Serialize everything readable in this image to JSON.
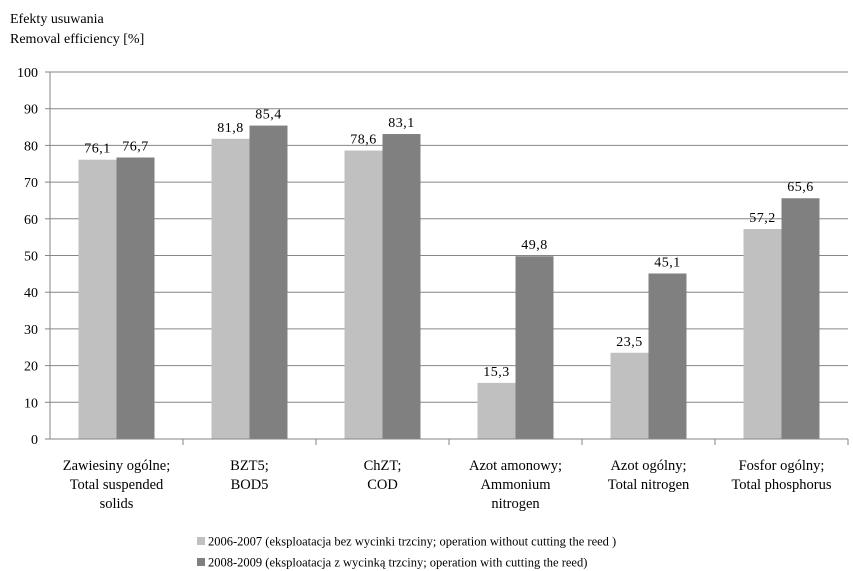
{
  "chart_data": {
    "type": "bar",
    "ylabel_lines": [
      "Efekty usuwania",
      "Removal efficiency [%]"
    ],
    "ylim": [
      0,
      100
    ],
    "yticks": [
      "0",
      "10",
      "20",
      "30",
      "40",
      "50",
      "60",
      "70",
      "80",
      "90",
      "100"
    ],
    "grid": true,
    "categories": [
      [
        "Zawiesiny ogólne;",
        "Total suspended",
        "solids"
      ],
      [
        "BZT5;",
        "BOD5"
      ],
      [
        "ChZT;",
        "COD"
      ],
      [
        "Azot amonowy;",
        "Ammonium",
        "nitrogen"
      ],
      [
        "Azot ogólny;",
        "Total nitrogen"
      ],
      [
        "Fosfor ogólny;",
        "Total phosphorus"
      ]
    ],
    "series": [
      {
        "name": "2006-2007 (eksploatacja bez wycinki trzciny; operation without cutting the reed )",
        "color": "#c0c0c0",
        "values": [
          76.1,
          81.8,
          78.6,
          15.3,
          23.5,
          57.2
        ],
        "labels": [
          "76,1",
          "81,8",
          "78,6",
          "15,3",
          "23,5",
          "57,2"
        ]
      },
      {
        "name": "2008-2009 (eksploatacja z wycinką trzciny; operation with cutting the reed)",
        "color": "#808080",
        "values": [
          76.7,
          85.4,
          83.1,
          49.8,
          45.1,
          65.6
        ],
        "labels": [
          "76,7",
          "85,4",
          "83,1",
          "49,8",
          "45,1",
          "65,6"
        ]
      }
    ],
    "legend_position": "bottom"
  }
}
